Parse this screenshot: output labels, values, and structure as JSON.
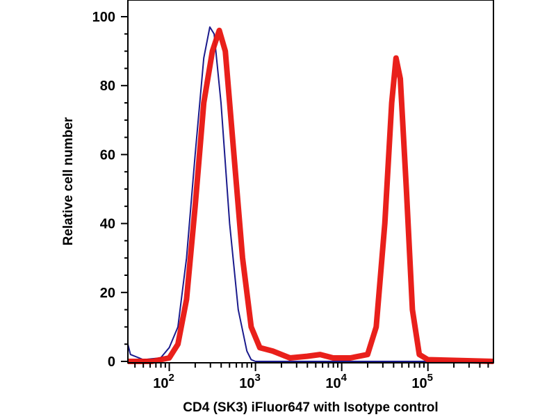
{
  "chart_data": {
    "type": "line",
    "title": "",
    "xlabel": "CD4 (SK3) iFluor647 with Isotype control",
    "ylabel": "Relative cell number",
    "xscale": "log10",
    "xlim_log10": [
      1.52,
      5.76
    ],
    "ylim": [
      0,
      105
    ],
    "x_tick_labels": [
      {
        "exp": 2,
        "base": "10",
        "sup": "2"
      },
      {
        "exp": 3,
        "base": "10",
        "sup": "3"
      },
      {
        "exp": 4,
        "base": "10",
        "sup": "4"
      },
      {
        "exp": 5,
        "base": "10",
        "sup": "5"
      }
    ],
    "y_ticks": [
      0,
      20,
      40,
      60,
      80,
      100
    ],
    "y_tick_labels": [
      "0",
      "20",
      "40",
      "60",
      "80",
      "100"
    ],
    "grid": false,
    "series": [
      {
        "name": "Isotype control",
        "color": "#1a1a8c",
        "x_log10": [
          1.52,
          1.55,
          1.7,
          1.9,
          2.0,
          2.1,
          2.2,
          2.3,
          2.4,
          2.47,
          2.52,
          2.6,
          2.7,
          2.8,
          2.9,
          2.95,
          3.0,
          5.76
        ],
        "y": [
          5,
          2,
          0.5,
          1,
          4,
          10,
          30,
          60,
          88,
          97,
          95,
          75,
          40,
          15,
          3,
          0.5,
          0,
          0
        ]
      },
      {
        "name": "CD4 (SK3) iFluor647",
        "color": "#e8140f",
        "x_log10": [
          1.52,
          1.8,
          2.0,
          2.1,
          2.2,
          2.3,
          2.4,
          2.5,
          2.58,
          2.65,
          2.75,
          2.85,
          2.95,
          3.05,
          3.2,
          3.4,
          3.6,
          3.75,
          3.9,
          4.1,
          4.3,
          4.4,
          4.5,
          4.58,
          4.63,
          4.68,
          4.75,
          4.82,
          4.9,
          5.0,
          5.76
        ],
        "y": [
          0,
          0,
          1,
          5,
          18,
          45,
          75,
          90,
          96,
          90,
          60,
          30,
          10,
          4,
          3,
          1,
          1.5,
          2,
          1,
          1,
          2,
          10,
          40,
          75,
          88,
          82,
          50,
          15,
          2,
          0.5,
          0
        ]
      }
    ]
  }
}
